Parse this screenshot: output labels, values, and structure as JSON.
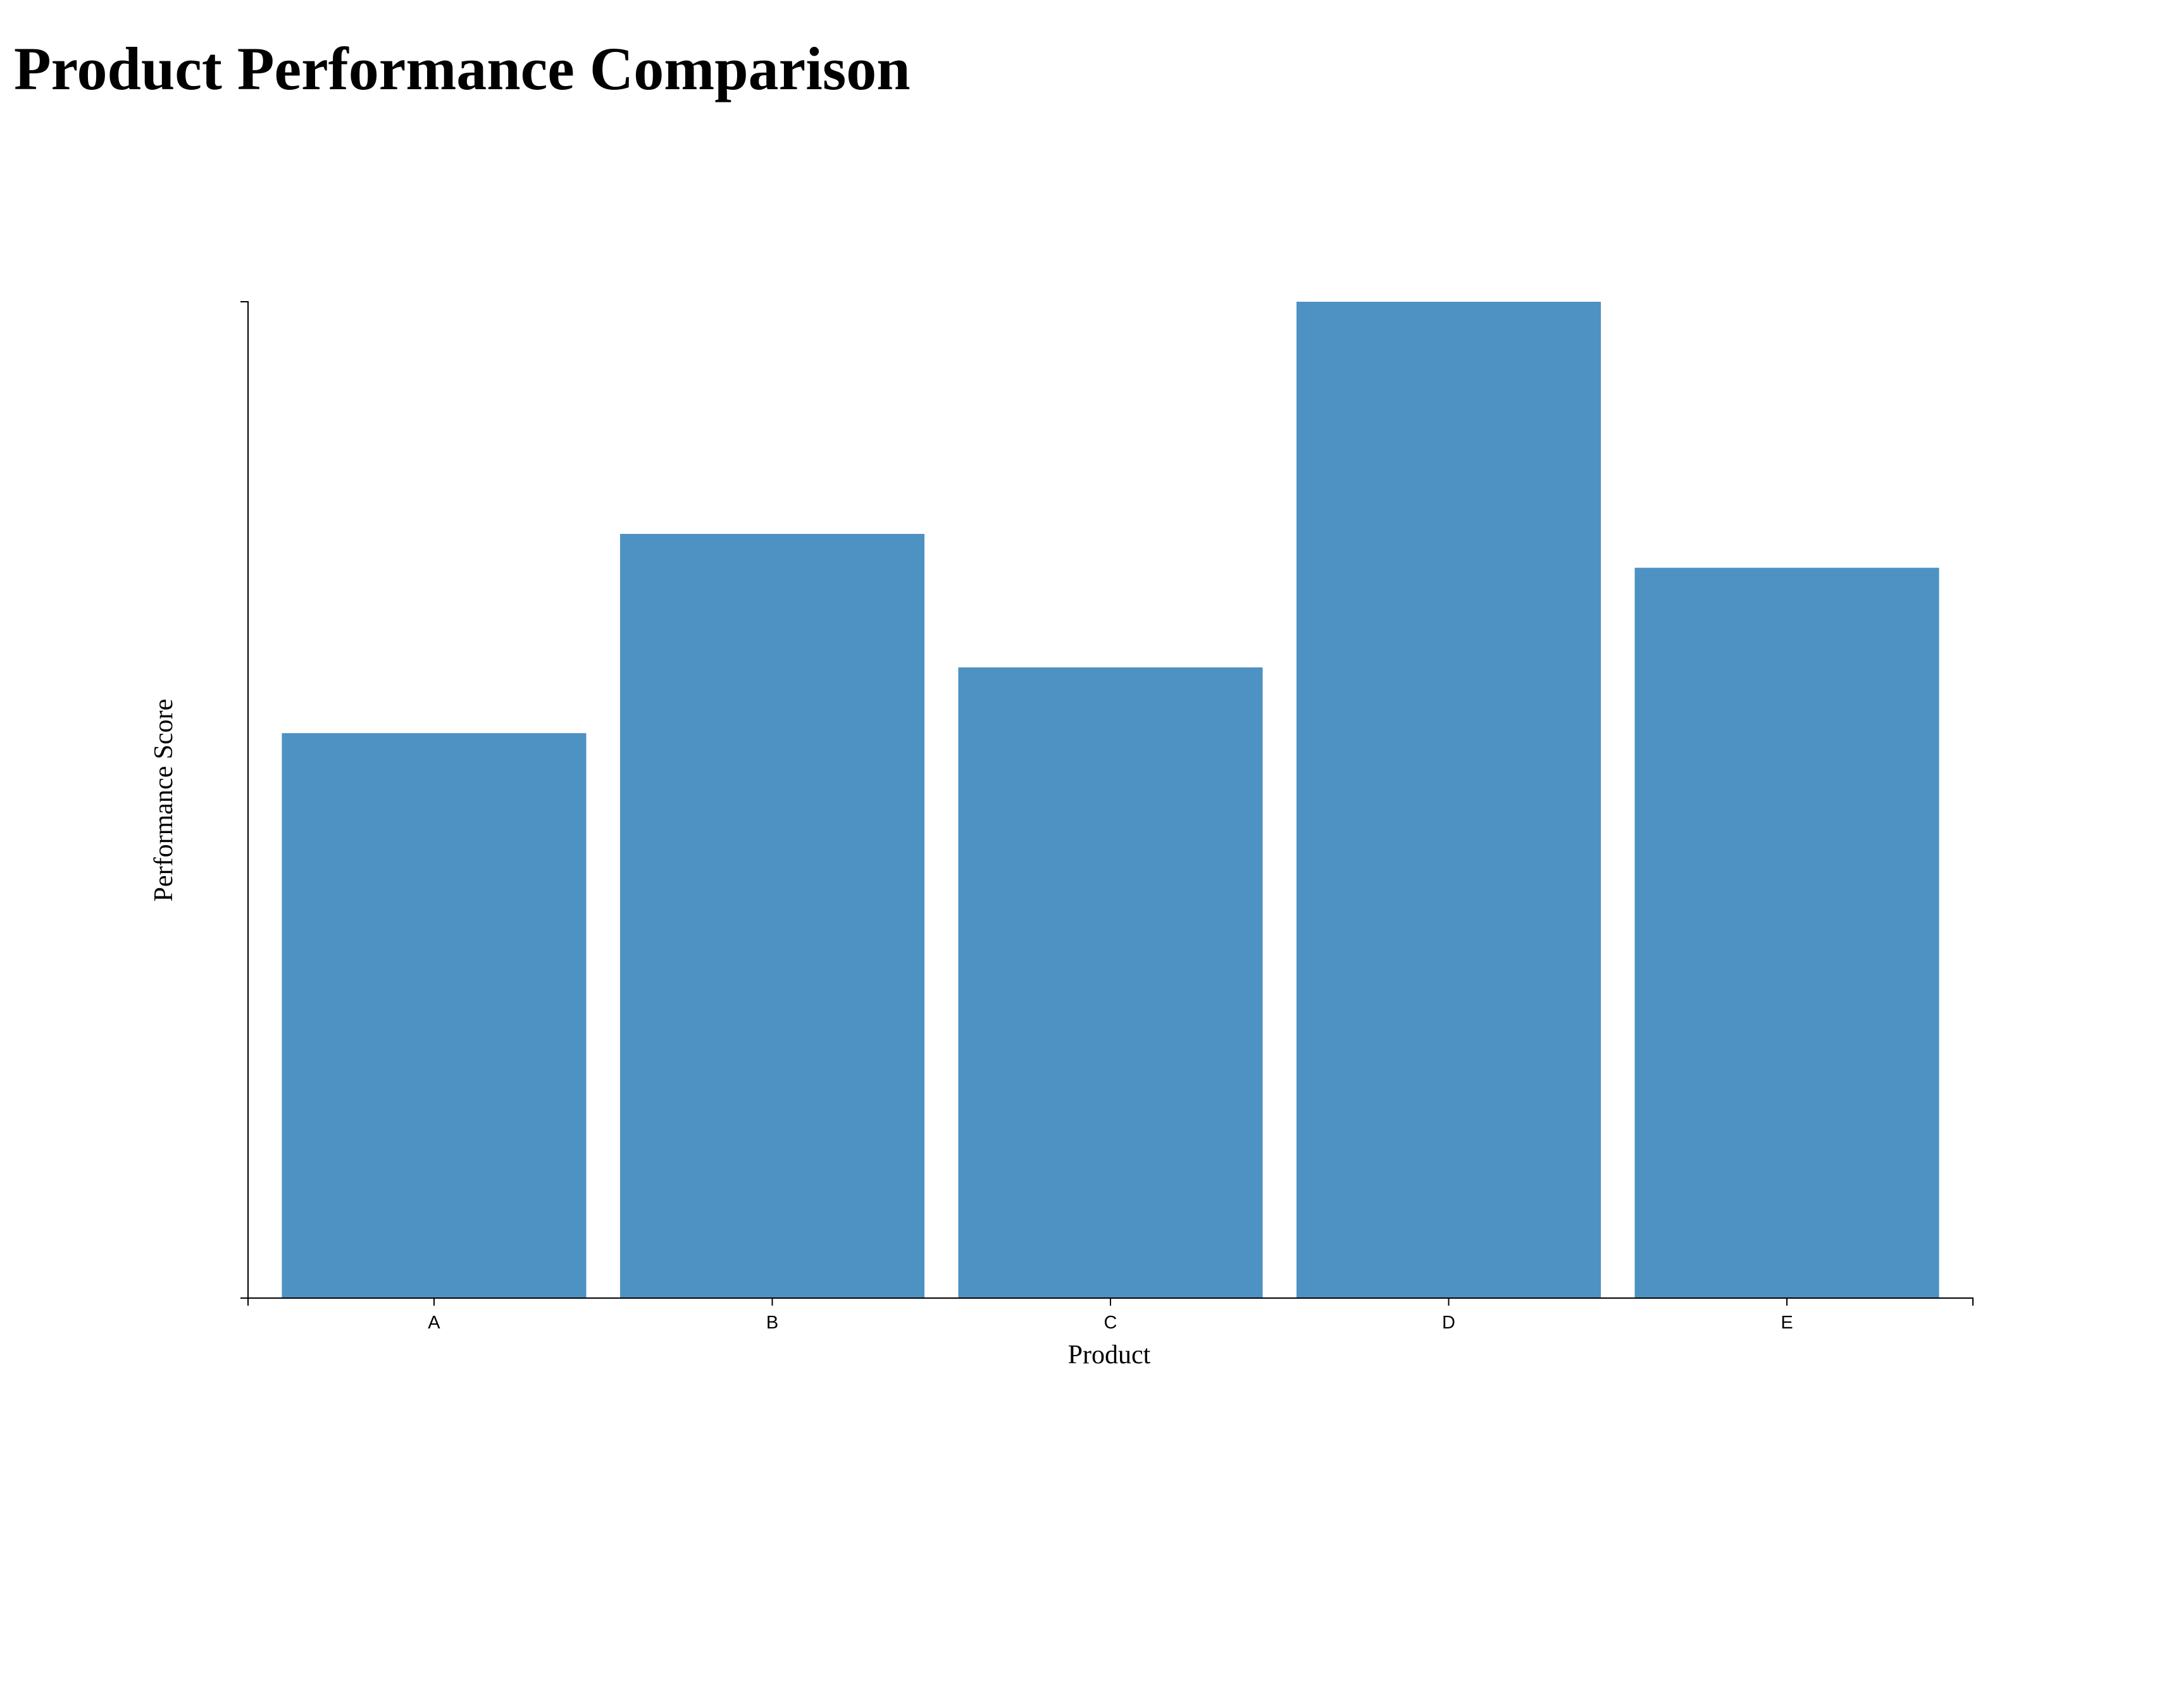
{
  "page": {
    "title": "Product Performance Comparison"
  },
  "chart_data": {
    "type": "bar",
    "title": "Product Performance Comparison",
    "categories": [
      "A",
      "B",
      "C",
      "D",
      "E"
    ],
    "values": [
      56.7,
      76.7,
      63.3,
      100,
      73.3
    ],
    "xlabel": "Product",
    "ylabel": "Performance Score",
    "ylim": [
      0,
      100
    ],
    "y_ticks_labeled": false,
    "grid": false,
    "legend": "none",
    "colors": {
      "bar": "#4d92c3",
      "axis": "#000000"
    }
  }
}
